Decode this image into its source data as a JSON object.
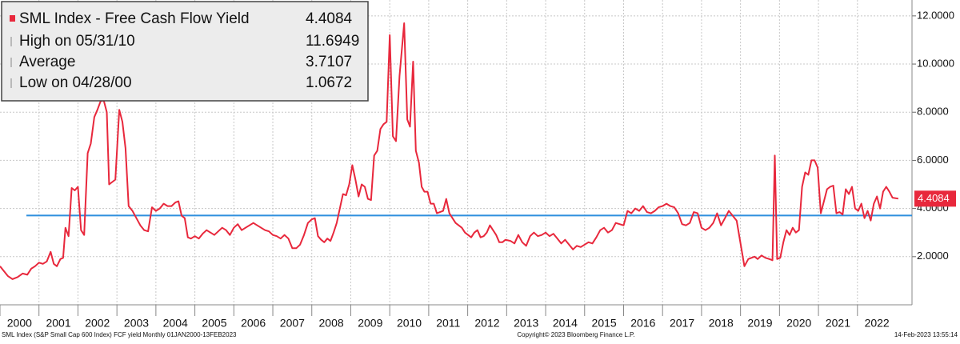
{
  "chart_data": {
    "type": "line",
    "series": [
      {
        "name": "SML Index - Free Cash Flow Yield",
        "color": "#e8283c",
        "x": [
          2000.0,
          2000.1,
          2000.2,
          2000.32,
          2000.45,
          2000.58,
          2000.7,
          2000.8,
          2000.9,
          2001.0,
          2001.1,
          2001.2,
          2001.3,
          2001.38,
          2001.46,
          2001.55,
          2001.62,
          2001.68,
          2001.76,
          2001.84,
          2001.92,
          2002.0,
          2002.08,
          2002.16,
          2002.25,
          2002.33,
          2002.42,
          2002.5,
          2002.58,
          2002.66,
          2002.74,
          2002.8,
          2002.88,
          2002.96,
          2003.06,
          2003.14,
          2003.22,
          2003.3,
          2003.4,
          2003.5,
          2003.6,
          2003.7,
          2003.8,
          2003.9,
          2004.0,
          2004.1,
          2004.2,
          2004.3,
          2004.4,
          2004.5,
          2004.58,
          2004.66,
          2004.74,
          2004.82,
          2004.9,
          2005.0,
          2005.1,
          2005.2,
          2005.3,
          2005.4,
          2005.5,
          2005.6,
          2005.7,
          2005.8,
          2005.9,
          2006.0,
          2006.1,
          2006.2,
          2006.3,
          2006.4,
          2006.5,
          2006.6,
          2006.7,
          2006.8,
          2006.9,
          2007.0,
          2007.1,
          2007.2,
          2007.3,
          2007.4,
          2007.5,
          2007.6,
          2007.7,
          2007.8,
          2007.9,
          2008.0,
          2008.08,
          2008.16,
          2008.24,
          2008.32,
          2008.4,
          2008.48,
          2008.56,
          2008.64,
          2008.72,
          2008.8,
          2008.88,
          2008.96,
          2009.04,
          2009.12,
          2009.2,
          2009.28,
          2009.36,
          2009.44,
          2009.52,
          2009.6,
          2009.68,
          2009.76,
          2009.84,
          2009.92,
          2010.0,
          2010.08,
          2010.16,
          2010.25,
          2010.37,
          2010.45,
          2010.52,
          2010.6,
          2010.67,
          2010.75,
          2010.82,
          2010.89,
          2010.97,
          2011.05,
          2011.13,
          2011.21,
          2011.29,
          2011.37,
          2011.45,
          2011.53,
          2011.61,
          2011.69,
          2011.77,
          2011.85,
          2011.93,
          2012.01,
          2012.09,
          2012.17,
          2012.25,
          2012.33,
          2012.41,
          2012.49,
          2012.57,
          2012.65,
          2012.73,
          2012.81,
          2012.89,
          2012.97,
          2013.1,
          2013.2,
          2013.3,
          2013.4,
          2013.5,
          2013.6,
          2013.7,
          2013.8,
          2013.9,
          2014.0,
          2014.1,
          2014.2,
          2014.3,
          2014.4,
          2014.5,
          2014.6,
          2014.7,
          2014.8,
          2014.9,
          2015.0,
          2015.1,
          2015.2,
          2015.3,
          2015.4,
          2015.5,
          2015.6,
          2015.7,
          2015.8,
          2015.9,
          2016.0,
          2016.1,
          2016.2,
          2016.3,
          2016.4,
          2016.5,
          2016.6,
          2016.7,
          2016.8,
          2016.9,
          2017.0,
          2017.1,
          2017.2,
          2017.3,
          2017.4,
          2017.5,
          2017.6,
          2017.7,
          2017.8,
          2017.9,
          2018.0,
          2018.1,
          2018.2,
          2018.3,
          2018.4,
          2018.5,
          2018.6,
          2018.7,
          2018.9,
          2019.1,
          2019.2,
          2019.28,
          2019.36,
          2019.44,
          2019.54,
          2019.64,
          2019.74,
          2019.82,
          2019.88,
          2019.94,
          2020.02,
          2020.1,
          2020.18,
          2020.26,
          2020.34,
          2020.42,
          2020.5,
          2020.58,
          2020.66,
          2020.74,
          2020.82,
          2020.9,
          2020.98,
          2021.06,
          2021.14,
          2021.22,
          2021.3,
          2021.38,
          2021.46,
          2021.54,
          2021.62,
          2021.7,
          2021.78,
          2021.86,
          2021.94,
          2022.02,
          2022.1,
          2022.18,
          2022.26,
          2022.34,
          2022.42,
          2022.5,
          2022.58,
          2022.66,
          2022.74,
          2022.82,
          2022.9,
          2023.05
        ],
        "values": [
          1.6,
          1.4,
          1.2,
          1.0672,
          1.15,
          1.3,
          1.25,
          1.5,
          1.6,
          1.75,
          1.7,
          1.8,
          2.2,
          1.7,
          1.6,
          1.9,
          1.95,
          3.2,
          2.85,
          4.85,
          4.75,
          4.9,
          3.1,
          2.9,
          6.3,
          6.7,
          7.8,
          8.1,
          8.45,
          8.5,
          8.0,
          5.0,
          5.1,
          5.2,
          8.1,
          7.6,
          6.5,
          4.1,
          3.9,
          3.6,
          3.3,
          3.1,
          3.05,
          4.05,
          3.9,
          4.0,
          4.2,
          4.1,
          4.1,
          4.25,
          4.3,
          3.7,
          3.6,
          2.8,
          2.75,
          2.85,
          2.75,
          2.95,
          3.1,
          3.0,
          2.9,
          3.05,
          3.2,
          3.1,
          2.9,
          3.2,
          3.35,
          3.1,
          3.2,
          3.3,
          3.4,
          3.3,
          3.2,
          3.1,
          3.05,
          2.9,
          2.85,
          2.75,
          2.9,
          2.75,
          2.35,
          2.35,
          2.5,
          2.9,
          3.4,
          3.55,
          3.6,
          2.85,
          2.7,
          2.6,
          2.75,
          2.65,
          3.0,
          3.4,
          4.0,
          4.6,
          4.55,
          5.0,
          5.8,
          5.2,
          4.5,
          5.0,
          4.9,
          4.4,
          4.35,
          6.2,
          6.4,
          7.3,
          7.5,
          7.6,
          11.2,
          7.0,
          6.8,
          9.5,
          11.6949,
          7.7,
          7.4,
          10.1,
          6.4,
          5.9,
          4.9,
          4.7,
          4.7,
          4.2,
          4.2,
          3.8,
          3.85,
          3.9,
          4.4,
          3.8,
          3.6,
          3.4,
          3.3,
          3.2,
          3.0,
          2.9,
          2.8,
          3.0,
          3.1,
          2.8,
          2.85,
          3.0,
          3.3,
          3.1,
          2.9,
          2.6,
          2.6,
          2.7,
          2.65,
          2.55,
          2.9,
          2.6,
          2.45,
          2.85,
          3.0,
          2.85,
          2.9,
          3.0,
          2.85,
          2.95,
          2.75,
          2.55,
          2.7,
          2.5,
          2.3,
          2.45,
          2.4,
          2.5,
          2.6,
          2.55,
          2.8,
          3.1,
          3.2,
          3.0,
          3.1,
          3.4,
          3.35,
          3.3,
          3.9,
          3.8,
          4.0,
          3.9,
          4.1,
          3.85,
          3.8,
          3.9,
          4.05,
          4.1,
          4.2,
          4.1,
          4.05,
          3.8,
          3.35,
          3.3,
          3.4,
          3.85,
          3.8,
          3.2,
          3.1,
          3.2,
          3.4,
          3.8,
          3.3,
          3.6,
          3.9,
          3.5,
          1.6,
          1.9,
          1.95,
          2.0,
          1.9,
          2.05,
          1.95,
          1.9,
          1.85,
          6.2,
          1.9,
          1.95,
          2.6,
          3.1,
          2.9,
          3.2,
          3.0,
          3.1,
          4.9,
          5.5,
          5.4,
          6.0,
          6.0,
          5.7,
          3.8,
          4.3,
          4.8,
          4.9,
          4.95,
          3.8,
          3.85,
          3.75,
          4.8,
          4.6,
          4.9,
          4.0,
          3.9,
          4.2,
          3.6,
          3.9,
          3.5,
          4.2,
          4.5,
          4.0,
          4.7,
          4.9,
          4.7,
          4.45,
          4.4084
        ]
      }
    ],
    "legend_stats": [
      {
        "label": "High on 05/31/10",
        "value": 11.6949
      },
      {
        "label": "Average",
        "value": 3.7107
      },
      {
        "label": "Low on 04/28/00",
        "value": 1.0672
      }
    ],
    "average_line": {
      "value": 3.7107,
      "color": "#2f8fde"
    },
    "xlim": [
      2000,
      2023.4
    ],
    "xticks": [
      2000,
      2001,
      2002,
      2003,
      2004,
      2005,
      2006,
      2007,
      2008,
      2009,
      2010,
      2011,
      2012,
      2013,
      2014,
      2015,
      2016,
      2017,
      2018,
      2019,
      2020,
      2021,
      2022
    ],
    "ylim": [
      0,
      12.66
    ],
    "yticks": [
      {
        "value": 2,
        "label": "2.0000"
      },
      {
        "value": 4,
        "label": "4.0000"
      },
      {
        "value": 6,
        "label": "6.0000"
      },
      {
        "value": 8,
        "label": "8.0000"
      },
      {
        "value": 10,
        "label": "10.0000"
      },
      {
        "value": 12,
        "label": "12.0000"
      }
    ],
    "grid": true,
    "legend": "upper left",
    "footer": {
      "left": "SML Index (S&P Small Cap 600 Index) FCF yield  Monthly 01JAN2000-13FEB2023",
      "center": "Copyright© 2023 Bloomberg Finance L.P.",
      "right": "14-Feb-2023 13:55:14"
    }
  }
}
